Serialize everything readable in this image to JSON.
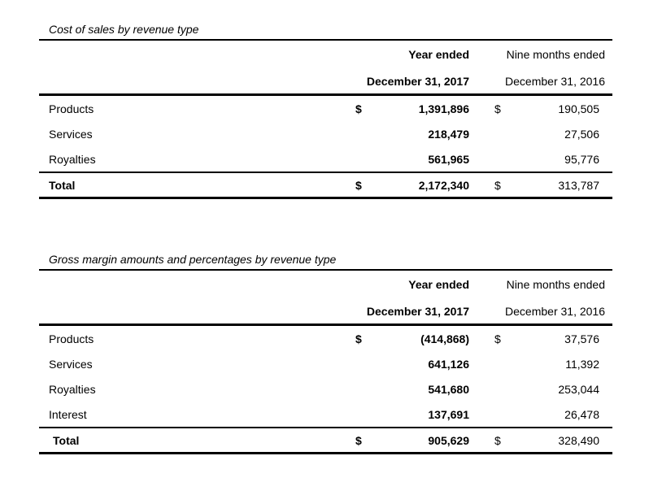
{
  "page": {
    "background_color": "#ffffff",
    "text_color": "#000000"
  },
  "tables": [
    {
      "title": "Cost of sales by revenue type",
      "columns": [
        {
          "line1": "Year ended",
          "line2": "December 31, 2017"
        },
        {
          "line1": "Nine months ended",
          "line2": "December 31, 2016"
        }
      ],
      "rows": [
        {
          "label": "Products",
          "currency_2017": "$",
          "value_2017": "1,391,896",
          "currency_2016": "$",
          "value_2016": "190,505"
        },
        {
          "label": "Services",
          "currency_2017": "",
          "value_2017": "218,479",
          "currency_2016": "",
          "value_2016": "27,506"
        },
        {
          "label": "Royalties",
          "currency_2017": "",
          "value_2017": "561,965",
          "currency_2016": "",
          "value_2016": "95,776"
        }
      ],
      "total": {
        "label": "Total",
        "currency_2017": "$",
        "value_2017": "2,172,340",
        "currency_2016": "$",
        "value_2016": "313,787"
      }
    },
    {
      "title": "Gross margin amounts and percentages by revenue type",
      "columns": [
        {
          "line1": "Year ended",
          "line2": "December 31, 2017"
        },
        {
          "line1": "Nine months ended",
          "line2": "December 31, 2016"
        }
      ],
      "rows": [
        {
          "label": "Products",
          "currency_2017": "$",
          "value_2017": "(414,868)",
          "currency_2016": "$",
          "value_2016": "37,576"
        },
        {
          "label": "Services",
          "currency_2017": "",
          "value_2017": "641,126",
          "currency_2016": "",
          "value_2016": "11,392"
        },
        {
          "label": "Royalties",
          "currency_2017": "",
          "value_2017": "541,680",
          "currency_2016": "",
          "value_2016": "253,044"
        },
        {
          "label": "Interest",
          "currency_2017": "",
          "value_2017": "137,691",
          "currency_2016": "",
          "value_2016": "26,478"
        }
      ],
      "total": {
        "label": "Total",
        "currency_2017": "$",
        "value_2017": "905,629",
        "currency_2016": "$",
        "value_2016": "328,490"
      }
    }
  ]
}
